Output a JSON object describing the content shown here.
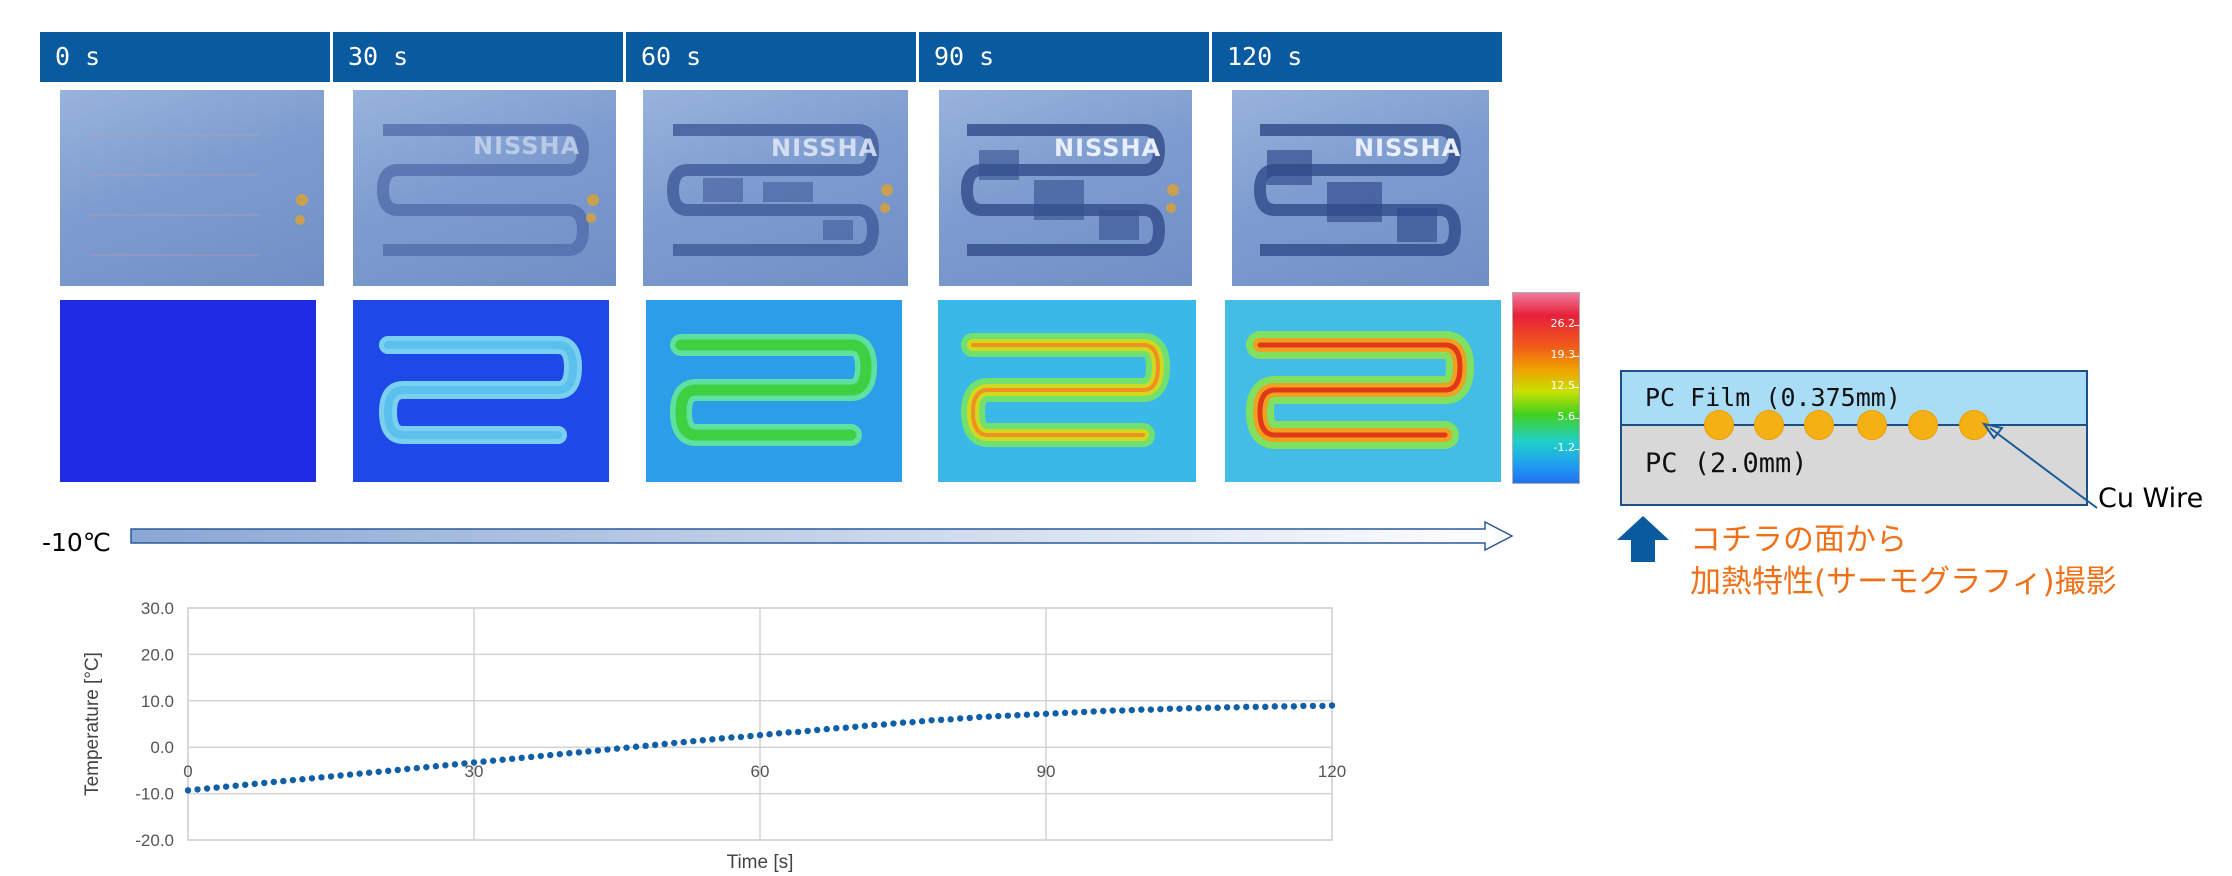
{
  "header_cells": [
    "0 s",
    "30 s",
    "60 s",
    "90 s",
    "120 s"
  ],
  "photo_logo": "NISSHA",
  "colorbar_ticks": [
    "26.2",
    "19.3",
    "12.5",
    "5.6",
    "-1.2"
  ],
  "start_temp": "-10℃",
  "diagram": {
    "film_label": "PC Film (0.375mm)",
    "pc_label": "PC  (2.0mm)",
    "wire_label": "Cu Wire",
    "note_line1": "コチラの面から",
    "note_line2": "加熱特性(サーモグラフィ)撮影"
  },
  "colors": {
    "header_bg": "#0a5aa0",
    "series": "#1060a8",
    "wire_dot": "#f5b114",
    "note_text": "#f07018"
  },
  "chart_data": {
    "type": "scatter",
    "xlabel": "Time [s]",
    "ylabel": "Temperature [°C]",
    "xlim": [
      0,
      120
    ],
    "ylim": [
      -20,
      30
    ],
    "xticks": [
      "0",
      "30",
      "60",
      "90",
      "120"
    ],
    "yticks": [
      "30.0",
      "20.0",
      "10.0",
      "0.0",
      "-10.0",
      "-20.0"
    ],
    "grid": true,
    "series": [
      {
        "color": "#1060a8",
        "x": [
          0,
          1,
          2,
          3,
          4,
          5,
          6,
          7,
          8,
          9,
          10,
          11,
          12,
          13,
          14,
          15,
          16,
          17,
          18,
          19,
          20,
          21,
          22,
          23,
          24,
          25,
          26,
          27,
          28,
          29,
          30,
          31,
          32,
          33,
          34,
          35,
          36,
          37,
          38,
          39,
          40,
          41,
          42,
          43,
          44,
          45,
          46,
          47,
          48,
          49,
          50,
          51,
          52,
          53,
          54,
          55,
          56,
          57,
          58,
          59,
          60,
          61,
          62,
          63,
          64,
          65,
          66,
          67,
          68,
          69,
          70,
          71,
          72,
          73,
          74,
          75,
          76,
          77,
          78,
          79,
          80,
          81,
          82,
          83,
          84,
          85,
          86,
          87,
          88,
          89,
          90,
          91,
          92,
          93,
          94,
          95,
          96,
          97,
          98,
          99,
          100,
          101,
          102,
          103,
          104,
          105,
          106,
          107,
          108,
          109,
          110,
          111,
          112,
          113,
          114,
          115,
          116,
          117,
          118,
          119,
          120
        ],
        "y": [
          -9.3,
          -9.1,
          -8.9,
          -8.7,
          -8.5,
          -8.3,
          -8.1,
          -7.9,
          -7.7,
          -7.5,
          -7.3,
          -7.1,
          -6.9,
          -6.7,
          -6.5,
          -6.3,
          -6.1,
          -5.9,
          -5.7,
          -5.5,
          -5.3,
          -5.1,
          -4.9,
          -4.7,
          -4.5,
          -4.3,
          -4.1,
          -3.9,
          -3.7,
          -3.5,
          -3.3,
          -3.1,
          -2.9,
          -2.7,
          -2.5,
          -2.3,
          -2.1,
          -1.9,
          -1.7,
          -1.5,
          -1.3,
          -1.1,
          -0.9,
          -0.7,
          -0.5,
          -0.3,
          -0.1,
          0.1,
          0.3,
          0.5,
          0.7,
          0.9,
          1.1,
          1.3,
          1.5,
          1.7,
          1.9,
          2.1,
          2.2,
          2.4,
          2.6,
          2.8,
          3.0,
          3.2,
          3.3,
          3.5,
          3.7,
          3.9,
          4.1,
          4.2,
          4.4,
          4.6,
          4.8,
          4.9,
          5.1,
          5.3,
          5.4,
          5.6,
          5.8,
          5.9,
          6.0,
          6.2,
          6.3,
          6.5,
          6.6,
          6.7,
          6.8,
          6.9,
          7.0,
          7.1,
          7.2,
          7.3,
          7.4,
          7.5,
          7.6,
          7.7,
          7.8,
          7.9,
          7.9,
          8.0,
          8.1,
          8.1,
          8.2,
          8.3,
          8.3,
          8.4,
          8.4,
          8.5,
          8.5,
          8.6,
          8.6,
          8.7,
          8.7,
          8.7,
          8.8,
          8.8,
          8.8,
          8.9,
          8.9,
          8.9,
          9.0
        ]
      }
    ]
  }
}
